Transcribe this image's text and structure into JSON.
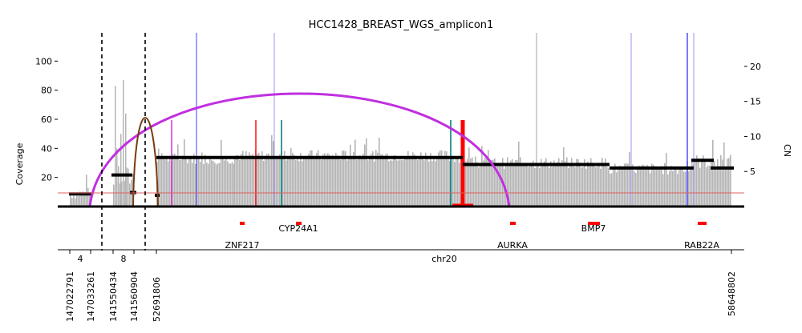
{
  "chart_data": {
    "type": "coverage-breakpoint-graph",
    "title": "HCC1428_BREAST_WGS_amplicon1",
    "ylabel_left": "Coverage",
    "ylabel_right": "CN",
    "left_ticks": [
      20,
      40,
      60,
      80,
      100
    ],
    "right_ticks": [
      5,
      10,
      15,
      20
    ],
    "coverage_ylim": [
      0,
      120
    ],
    "cn_ylim": [
      0,
      24.9
    ],
    "segments_label": [
      {
        "chrom": "4",
        "start": "147022791",
        "end": "147033261"
      },
      {
        "chrom": "8",
        "start": "141550434",
        "end": "141560904"
      },
      {
        "chrom": "chr20",
        "start": "52691806",
        "end": "58648802"
      }
    ],
    "genes": [
      {
        "name": "ZNF217"
      },
      {
        "name": "CYP24A1"
      },
      {
        "name": "AURKA"
      },
      {
        "name": "BMP7"
      },
      {
        "name": "RAB22A"
      }
    ],
    "cn_segments": [
      {
        "region": "chr4",
        "cn": 1.8
      },
      {
        "region": "chr8 left",
        "cn": 4.5
      },
      {
        "region": "chr8 small",
        "cn": 2.0
      },
      {
        "region": "chr20 a",
        "cn": 7.0
      },
      {
        "region": "chr20 b",
        "cn": 6.0
      },
      {
        "region": "chr20 c",
        "cn": 5.5
      },
      {
        "region": "chr20 d",
        "cn": 6.6
      },
      {
        "region": "chr20 e",
        "cn": 5.5
      }
    ],
    "colors": {
      "coverage": "#b5b5b5",
      "cn": "#000000",
      "arc_purple": "#c030e0",
      "arc_brown": "#7a3a10",
      "breakpoint_red": "#ff0000",
      "gene_red": "#ff0000",
      "teal": "#008080",
      "blue": "#4040ff",
      "magenta": "#cc00cc"
    }
  }
}
